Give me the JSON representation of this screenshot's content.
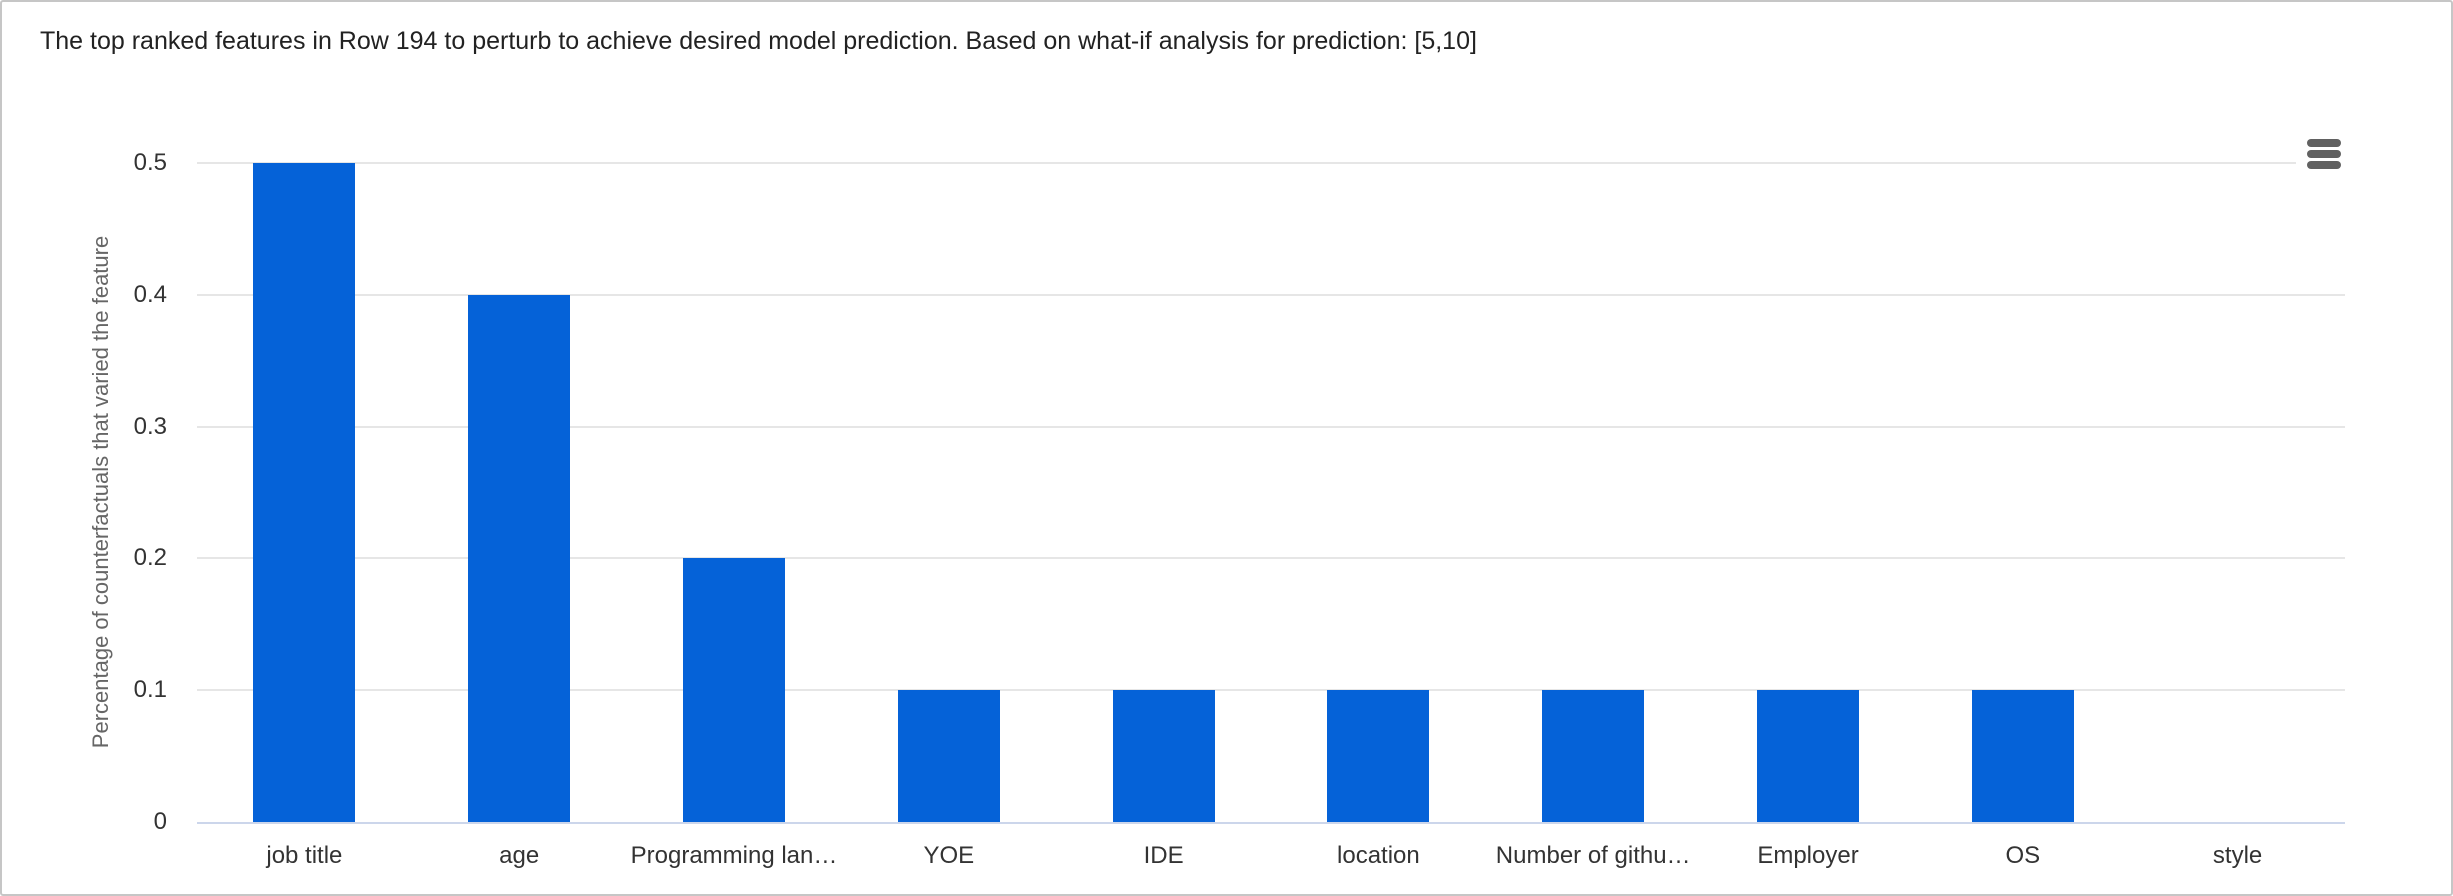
{
  "header": {
    "context_menu_aria": "Chart context menu"
  },
  "colors": {
    "bar": "#0562d8",
    "gridline": "#e6e6e6",
    "axis_line": "#ccd6eb",
    "tick_label": "#333333",
    "axis_title": "#666666",
    "chart_title": "#222222",
    "menu_icon": "#616161",
    "card_border": "#c6c6c6",
    "background": "#ffffff"
  },
  "chart_data": {
    "type": "bar",
    "title": "The top ranked features in Row 194 to perturb to achieve desired model prediction. Based on what-if analysis for prediction: [5,10]",
    "categories": [
      "job title",
      "age",
      "Programming lan…",
      "YOE",
      "IDE",
      "location",
      "Number of githu…",
      "Employer",
      "OS",
      "style"
    ],
    "values": [
      0.5,
      0.4,
      0.2,
      0.1,
      0.1,
      0.1,
      0.1,
      0.1,
      0.1,
      0
    ],
    "xlabel": "",
    "ylabel": "Percentage of counterfactuals that varied the feature",
    "ylim": [
      0,
      0.5
    ],
    "yticks": [
      0,
      0.1,
      0.2,
      0.3,
      0.4,
      0.5
    ],
    "ytick_labels": [
      "0",
      "0.1",
      "0.2",
      "0.3",
      "0.4",
      "0.5"
    ],
    "grid": true,
    "legend": "none",
    "bar_color": "#0562d8"
  }
}
